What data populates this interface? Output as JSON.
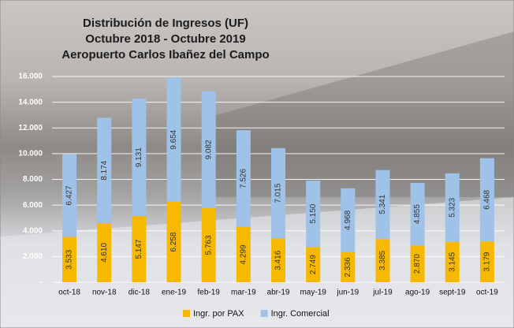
{
  "chart_data": {
    "type": "stacked-bar",
    "title": [
      "Distribución de Ingresos (UF)",
      "Octubre 2018 - Octubre 2019",
      "Aeropuerto Carlos Ibañez del Campo"
    ],
    "categories": [
      "oct-18",
      "nov-18",
      "dic-18",
      "ene-19",
      "feb-19",
      "mar-19",
      "abr-19",
      "may-19",
      "jun-19",
      "jul-19",
      "ago-19",
      "sept-19",
      "oct-19"
    ],
    "series": [
      {
        "name": "Ingr. por PAX",
        "color": "#f7b900",
        "values": [
          3533,
          4610,
          5147,
          6258,
          5763,
          4299,
          3416,
          2749,
          2336,
          3385,
          2870,
          3145,
          3179
        ],
        "value_labels": [
          "3.533",
          "4.610",
          "5.147",
          "6.258",
          "5.763",
          "4.299",
          "3.416",
          "2.749",
          "2.336",
          "3.385",
          "2.870",
          "3.145",
          "3.179"
        ]
      },
      {
        "name": "Ingr. Comercial",
        "color": "#9fc2e8",
        "values": [
          6427,
          8174,
          9131,
          9654,
          9082,
          7526,
          7015,
          5150,
          4968,
          5341,
          4855,
          5323,
          6468
        ],
        "value_labels": [
          "6.427",
          "8.174",
          "9.131",
          "9.654",
          "9.082",
          "7.526",
          "7.015",
          "5.150",
          "4.968",
          "5.341",
          "4.855",
          "5.323",
          "6.468"
        ]
      }
    ],
    "ylim": [
      0,
      16000
    ],
    "yticks": [
      {
        "value": 0,
        "label": "-"
      },
      {
        "value": 2000,
        "label": "2.000"
      },
      {
        "value": 4000,
        "label": "4.000"
      },
      {
        "value": 6000,
        "label": "6.000"
      },
      {
        "value": 8000,
        "label": "8.000"
      },
      {
        "value": 10000,
        "label": "10.000"
      },
      {
        "value": 12000,
        "label": "12.000"
      },
      {
        "value": 14000,
        "label": "14.000"
      },
      {
        "value": 16000,
        "label": "16.000"
      }
    ],
    "grid": true
  }
}
